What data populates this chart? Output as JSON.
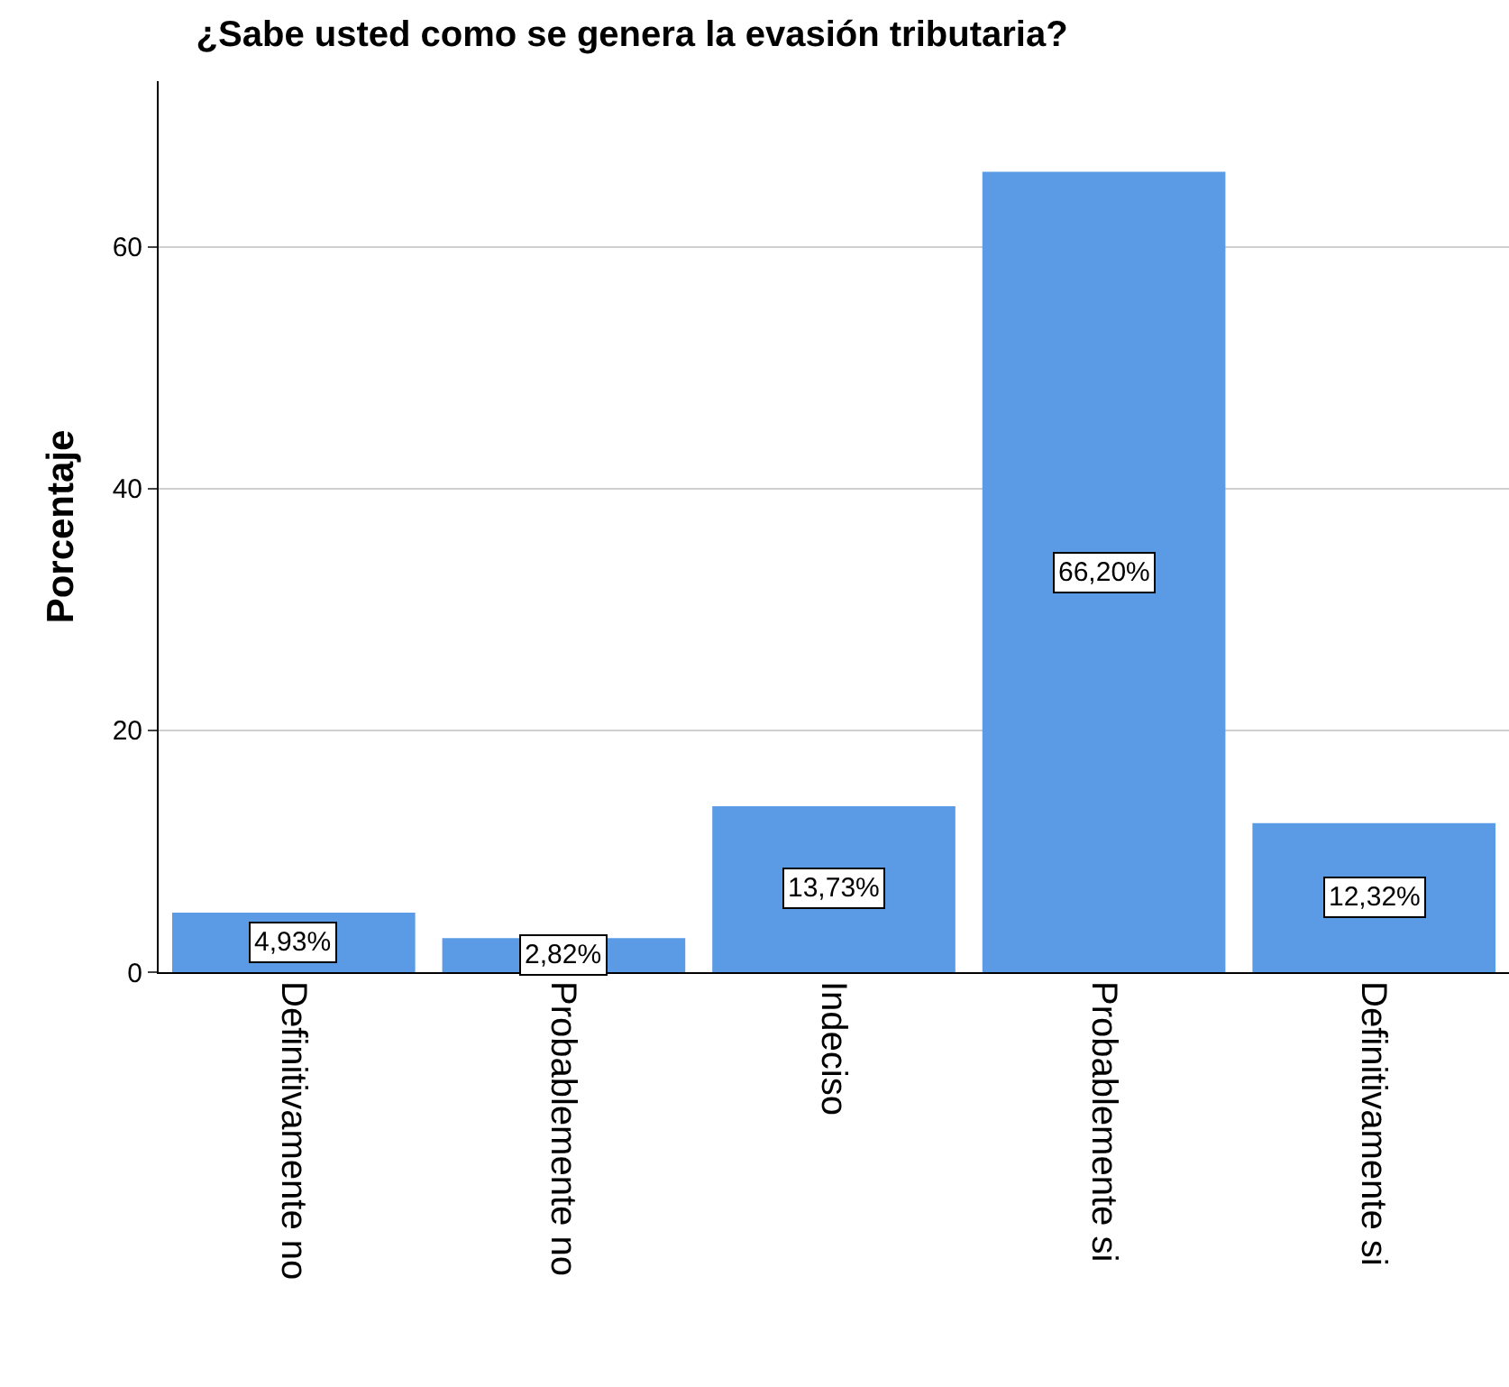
{
  "chart_data": {
    "type": "bar",
    "title": "¿Sabe usted como se genera la evasión tributaria?",
    "ylabel": "Porcentaje",
    "categories": [
      "Definitivamente no",
      "Probablemente no",
      "Indeciso",
      "Probablemente si",
      "Definitivamente si"
    ],
    "values": [
      4.93,
      2.82,
      13.73,
      66.2,
      12.32
    ],
    "value_labels": [
      "4,93%",
      "2,82%",
      "13,73%",
      "66,20%",
      "12,32%"
    ],
    "color": "#5b9be6",
    "ylim": [
      0,
      73.7
    ],
    "yticks": [
      0,
      20,
      40,
      60
    ],
    "grid": "y",
    "legend": false
  }
}
